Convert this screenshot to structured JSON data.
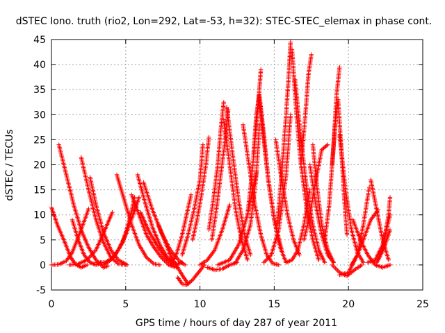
{
  "chart_data": {
    "type": "scatter",
    "title": "dSTEC Iono. truth (rio2, Lon=292, Lat=-53, h=32): STEC-STEC_elemax in phase cont.",
    "xlabel": "GPS time / hours of day 287 of year 2011",
    "ylabel": "dSTEC  / TECUs",
    "xlim": [
      0,
      25
    ],
    "ylim": [
      -5,
      45
    ],
    "xticks": [
      0,
      5,
      10,
      15,
      20,
      25
    ],
    "yticks": [
      -5,
      0,
      5,
      10,
      15,
      20,
      25,
      30,
      35,
      40,
      45
    ],
    "xtick_labels": [
      "0",
      "5",
      "10",
      "15",
      "20",
      "25"
    ],
    "ytick_labels": [
      "-5",
      "0",
      "5",
      "10",
      "15",
      "20",
      "25",
      "30",
      "35",
      "40",
      "45"
    ],
    "grid": true,
    "marker": "+",
    "marker_color": "#ff0000",
    "series": [
      {
        "x": [
          0.0,
          0.4,
          0.9,
          1.3,
          1.6,
          2.0,
          2.4
        ],
        "y": [
          11.5,
          8.0,
          4.5,
          1.5,
          0.2,
          -0.5,
          0.0
        ]
      },
      {
        "x": [
          0.0,
          0.5,
          1.0,
          1.4,
          1.8,
          2.3,
          2.5
        ],
        "y": [
          0.0,
          0.1,
          0.8,
          2.5,
          5.5,
          9.5,
          11.2
        ]
      },
      {
        "x": [
          0.5,
          1.0,
          1.5,
          2.0,
          2.5,
          3.0,
          3.5,
          3.8
        ],
        "y": [
          24.0,
          18.0,
          12.0,
          7.0,
          3.5,
          1.0,
          -0.5,
          -0.2
        ]
      },
      {
        "x": [
          1.2,
          1.8,
          2.4,
          3.0,
          3.6,
          4.1
        ],
        "y": [
          0.0,
          0.2,
          1.0,
          3.0,
          7.0,
          10.5
        ]
      },
      {
        "x": [
          2.0,
          2.5,
          3.0,
          3.5,
          4.0,
          4.5,
          5.0
        ],
        "y": [
          21.5,
          15.0,
          9.0,
          4.5,
          1.5,
          0.2,
          0.0
        ]
      },
      {
        "x": [
          1.4,
          1.8,
          2.2,
          2.6,
          3.0,
          3.4
        ],
        "y": [
          9.0,
          5.0,
          2.0,
          0.5,
          0.0,
          0.5
        ]
      },
      {
        "x": [
          2.6,
          3.0,
          3.5,
          4.0,
          4.5,
          5.1
        ],
        "y": [
          17.5,
          12.0,
          6.5,
          3.0,
          1.0,
          0.0
        ]
      },
      {
        "x": [
          3.0,
          3.6,
          4.2,
          4.8,
          5.3,
          5.6
        ],
        "y": [
          0.5,
          0.5,
          1.5,
          4.5,
          9.5,
          13.5
        ]
      },
      {
        "x": [
          4.4,
          4.9,
          5.4,
          5.9,
          6.4,
          6.9,
          7.3
        ],
        "y": [
          18.0,
          13.0,
          8.0,
          4.0,
          1.5,
          0.2,
          0.0
        ]
      },
      {
        "x": [
          3.5,
          4.0,
          4.5,
          5.0,
          5.5,
          5.9
        ],
        "y": [
          0.0,
          1.0,
          3.0,
          6.0,
          10.0,
          13.5
        ]
      },
      {
        "x": [
          5.4,
          5.9,
          6.4,
          6.9,
          7.4,
          7.9,
          8.4
        ],
        "y": [
          14.0,
          10.0,
          6.0,
          3.5,
          1.5,
          0.0,
          -0.5
        ]
      },
      {
        "x": [
          5.8,
          6.3,
          6.8,
          7.3,
          7.8,
          8.2
        ],
        "y": [
          18.0,
          12.5,
          7.5,
          4.0,
          1.5,
          0.5
        ]
      },
      {
        "x": [
          6.2,
          6.8,
          7.4,
          8.0,
          8.6,
          9.0
        ],
        "y": [
          16.5,
          11.0,
          6.5,
          3.0,
          0.8,
          0.0
        ]
      },
      {
        "x": [
          6.0,
          6.6,
          7.2,
          7.8,
          8.3,
          8.8
        ],
        "y": [
          10.5,
          6.5,
          3.5,
          1.0,
          0.0,
          0.5
        ]
      },
      {
        "x": [
          7.2,
          7.6,
          8.0,
          8.4,
          8.8,
          9.2
        ],
        "y": [
          8.0,
          5.0,
          2.0,
          0.0,
          -2.0,
          -3.8
        ]
      },
      {
        "x": [
          8.5,
          8.8,
          9.1,
          9.5,
          9.9,
          10.3
        ],
        "y": [
          -2.5,
          -3.8,
          -4.0,
          -3.0,
          -1.5,
          0.0
        ]
      },
      {
        "x": [
          8.0,
          8.4,
          8.8,
          9.1,
          9.4
        ],
        "y": [
          0.0,
          2.0,
          6.0,
          10.0,
          14.0
        ]
      },
      {
        "x": [
          8.8,
          9.2,
          9.6,
          10.0,
          10.2
        ],
        "y": [
          2.0,
          6.0,
          11.0,
          17.0,
          24.0
        ]
      },
      {
        "x": [
          9.5,
          9.8,
          10.1,
          10.4,
          10.6
        ],
        "y": [
          5.0,
          9.0,
          14.0,
          20.0,
          25.5
        ]
      },
      {
        "x": [
          10.0,
          10.5,
          11.0,
          11.5,
          12.0
        ],
        "y": [
          0.0,
          1.0,
          3.0,
          7.0,
          12.0
        ]
      },
      {
        "x": [
          10.6,
          10.9,
          11.2,
          11.4,
          11.6
        ],
        "y": [
          7.0,
          13.0,
          20.0,
          27.0,
          32.5
        ]
      },
      {
        "x": [
          10.8,
          11.1,
          11.4,
          11.7,
          11.9
        ],
        "y": [
          5.0,
          11.0,
          18.0,
          25.0,
          31.0
        ]
      },
      {
        "x": [
          11.6,
          12.0,
          12.4,
          12.8,
          13.2
        ],
        "y": [
          29.0,
          20.0,
          11.0,
          5.0,
          1.0
        ]
      },
      {
        "x": [
          11.8,
          12.2,
          12.6,
          13.0,
          13.4
        ],
        "y": [
          31.5,
          22.0,
          13.0,
          6.0,
          2.0
        ]
      },
      {
        "x": [
          10.5,
          11.0,
          11.5,
          12.0,
          12.5
        ],
        "y": [
          -0.5,
          -1.0,
          -0.8,
          0.0,
          0.5
        ]
      },
      {
        "x": [
          11.2,
          12.0,
          12.6,
          13.2,
          13.8
        ],
        "y": [
          0.0,
          1.0,
          4.0,
          10.0,
          18.5
        ]
      },
      {
        "x": [
          12.4,
          12.9,
          13.4,
          13.8,
          14.0
        ],
        "y": [
          0.5,
          3.0,
          8.0,
          18.0,
          28.0
        ]
      },
      {
        "x": [
          13.2,
          13.5,
          13.8,
          14.0,
          14.1
        ],
        "y": [
          10.0,
          18.0,
          28.0,
          35.0,
          39.0
        ]
      },
      {
        "x": [
          13.6,
          13.8,
          14.0,
          14.3,
          14.6,
          15.0,
          15.5
        ],
        "y": [
          22.0,
          30.0,
          34.0,
          26.0,
          17.0,
          9.0,
          3.0
        ]
      },
      {
        "x": [
          14.0,
          14.3,
          14.6,
          15.0,
          15.4,
          15.8
        ],
        "y": [
          33.0,
          25.0,
          17.0,
          9.0,
          3.5,
          0.5
        ]
      },
      {
        "x": [
          12.9,
          13.3,
          13.7,
          14.1,
          14.5,
          14.9,
          15.3
        ],
        "y": [
          28.0,
          20.0,
          12.0,
          6.0,
          2.0,
          0.3,
          0.0
        ]
      },
      {
        "x": [
          14.3,
          14.8,
          15.3,
          15.8,
          16.1
        ],
        "y": [
          0.5,
          2.0,
          7.0,
          18.0,
          30.0
        ]
      },
      {
        "x": [
          15.2,
          15.5,
          15.8,
          16.0,
          16.1
        ],
        "y": [
          8.0,
          18.0,
          30.0,
          39.0,
          44.5
        ]
      },
      {
        "x": [
          16.2,
          16.5,
          16.8,
          17.2,
          17.6,
          18.0
        ],
        "y": [
          43.0,
          30.0,
          20.0,
          11.0,
          5.0,
          1.0
        ]
      },
      {
        "x": [
          16.4,
          16.8,
          17.2,
          17.6,
          18.0,
          18.4
        ],
        "y": [
          37.0,
          25.0,
          15.0,
          8.0,
          3.0,
          0.5
        ]
      },
      {
        "x": [
          15.1,
          15.5,
          15.9,
          16.3,
          16.7
        ],
        "y": [
          25.0,
          17.0,
          10.0,
          5.0,
          2.0
        ]
      },
      {
        "x": [
          15.8,
          16.2,
          16.6,
          17.0,
          17.4
        ],
        "y": [
          0.5,
          1.0,
          3.0,
          8.0,
          15.0
        ]
      },
      {
        "x": [
          16.8,
          17.1,
          17.3,
          17.5
        ],
        "y": [
          20.0,
          30.0,
          38.0,
          42.0
        ]
      },
      {
        "x": [
          17.4,
          17.8,
          18.2,
          18.6,
          19.0
        ],
        "y": [
          20.0,
          12.0,
          6.0,
          2.0,
          0.5
        ]
      },
      {
        "x": [
          17.6,
          17.9,
          18.2,
          18.6,
          19.0
        ],
        "y": [
          24.0,
          15.0,
          8.0,
          3.0,
          0.5
        ]
      },
      {
        "x": [
          17.0,
          17.4,
          17.8,
          18.2,
          18.6
        ],
        "y": [
          5.0,
          10.0,
          17.0,
          23.0,
          24.0
        ]
      },
      {
        "x": [
          18.4,
          18.7,
          19.0,
          19.2,
          19.4
        ],
        "y": [
          5.0,
          12.0,
          24.0,
          34.0,
          39.5
        ]
      },
      {
        "x": [
          18.9,
          19.1,
          19.3,
          19.5,
          19.7,
          19.9
        ],
        "y": [
          20.0,
          28.0,
          33.0,
          24.0,
          14.0,
          6.0
        ]
      },
      {
        "x": [
          19.4,
          19.8,
          20.2,
          20.6,
          21.0
        ],
        "y": [
          26.0,
          15.0,
          7.0,
          2.5,
          0.5
        ]
      },
      {
        "x": [
          18.9,
          19.4,
          19.9,
          20.4,
          20.9
        ],
        "y": [
          0.0,
          -1.5,
          -2.2,
          -1.0,
          0.0
        ]
      },
      {
        "x": [
          19.4,
          20.0,
          20.6,
          21.0,
          21.4
        ],
        "y": [
          -2.0,
          -1.5,
          2.0,
          8.0,
          15.5
        ]
      },
      {
        "x": [
          20.2,
          20.6,
          21.0,
          21.5,
          22.0
        ],
        "y": [
          0.0,
          2.0,
          5.0,
          9.0,
          11.0
        ]
      },
      {
        "x": [
          20.3,
          20.8,
          21.3,
          21.8,
          22.3,
          22.8
        ],
        "y": [
          9.0,
          5.0,
          2.0,
          0.0,
          -0.5,
          0.0
        ]
      },
      {
        "x": [
          21.5,
          21.9,
          22.3,
          22.7
        ],
        "y": [
          17.0,
          11.0,
          5.0,
          1.0
        ]
      },
      {
        "x": [
          21.3,
          21.8,
          22.3,
          22.8
        ],
        "y": [
          0.5,
          1.0,
          4.0,
          10.0
        ]
      },
      {
        "x": [
          21.9,
          22.3,
          22.7,
          22.8
        ],
        "y": [
          0.5,
          3.0,
          10.0,
          13.5
        ]
      },
      {
        "x": [
          22.0,
          22.4,
          22.8
        ],
        "y": [
          1.0,
          3.5,
          7.0
        ]
      }
    ]
  }
}
